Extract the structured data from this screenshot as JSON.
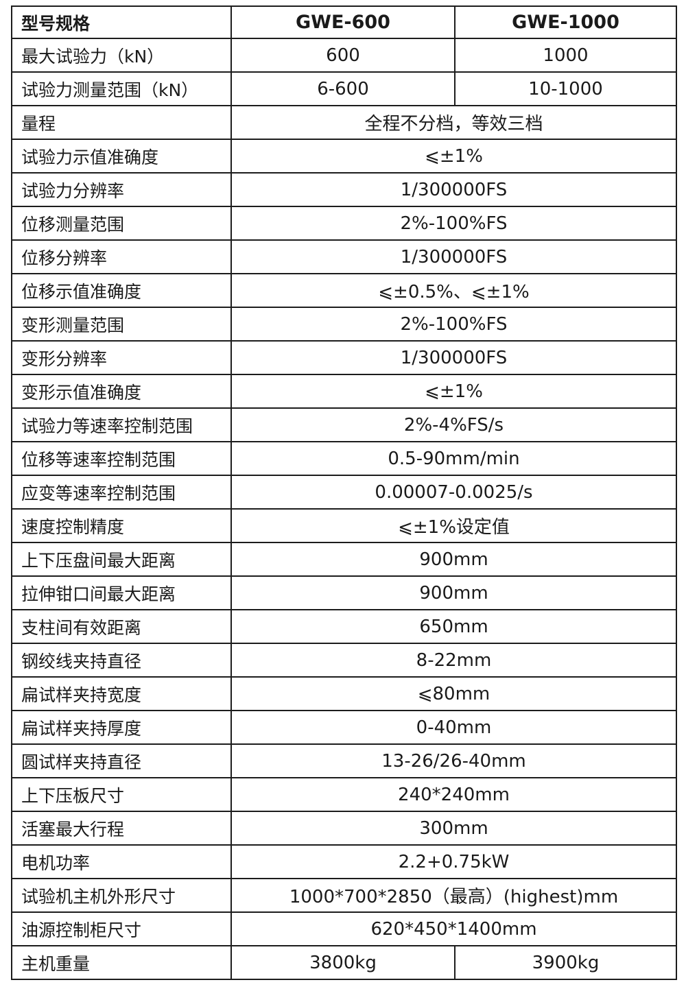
{
  "table": {
    "header": {
      "label": "型号规格",
      "models": [
        "GWE-600",
        "GWE-1000"
      ]
    },
    "rows": [
      {
        "label": "最大试验力（kN）",
        "values": [
          "600",
          "1000"
        ]
      },
      {
        "label": "试验力测量范围（kN）",
        "values": [
          "6-600",
          "10-1000"
        ]
      },
      {
        "label": "量程",
        "values": [
          "全程不分档，等效三档"
        ]
      },
      {
        "label": "试验力示值准确度",
        "values": [
          "⩽±1%"
        ]
      },
      {
        "label": "试验力分辨率",
        "values": [
          "1/300000FS"
        ]
      },
      {
        "label": "位移测量范围",
        "values": [
          "2%-100%FS"
        ]
      },
      {
        "label": "位移分辨率",
        "values": [
          "1/300000FS"
        ]
      },
      {
        "label": "位移示值准确度",
        "values": [
          "⩽±0.5%、⩽±1%"
        ]
      },
      {
        "label": "变形测量范围",
        "values": [
          "2%-100%FS"
        ]
      },
      {
        "label": "变形分辨率",
        "values": [
          "1/300000FS"
        ]
      },
      {
        "label": "变形示值准确度",
        "values": [
          "⩽±1%"
        ]
      },
      {
        "label": "试验力等速率控制范围",
        "values": [
          "2%-4%FS/s"
        ]
      },
      {
        "label": "位移等速率控制范围",
        "values": [
          "0.5-90mm/min"
        ]
      },
      {
        "label": "应变等速率控制范围",
        "values": [
          "0.00007-0.0025/s"
        ]
      },
      {
        "label": "速度控制精度",
        "values": [
          "⩽±1%设定值"
        ]
      },
      {
        "label": "上下压盘间最大距离",
        "values": [
          "900mm"
        ]
      },
      {
        "label": "拉伸钳口间最大距离",
        "values": [
          "900mm"
        ]
      },
      {
        "label": "支柱间有效距离",
        "values": [
          "650mm"
        ]
      },
      {
        "label": "钢绞线夹持直径",
        "values": [
          "8-22mm"
        ]
      },
      {
        "label": "扁试样夹持宽度",
        "values": [
          "⩽80mm"
        ]
      },
      {
        "label": "扁试样夹持厚度",
        "values": [
          "0-40mm"
        ]
      },
      {
        "label": "圆试样夹持直径",
        "values": [
          "13-26/26-40mm"
        ]
      },
      {
        "label": "上下压板尺寸",
        "values": [
          "240*240mm"
        ]
      },
      {
        "label": "活塞最大行程",
        "values": [
          "300mm"
        ]
      },
      {
        "label": "电机功率",
        "values": [
          "2.2+0.75kW"
        ]
      },
      {
        "label": "试验机主机外形尺寸",
        "values": [
          "1000*700*2850（最高）(highest)mm"
        ]
      },
      {
        "label": "油源控制柜尺寸",
        "values": [
          "620*450*1400mm"
        ]
      },
      {
        "label": "主机重量",
        "values": [
          "3800kg",
          "3900kg"
        ]
      }
    ]
  }
}
